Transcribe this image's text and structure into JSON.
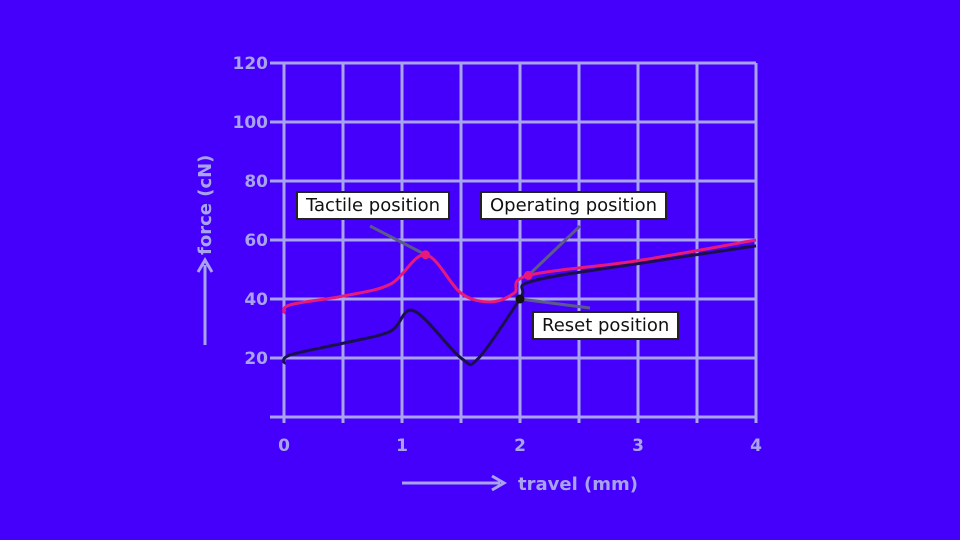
{
  "chart_data": {
    "type": "line",
    "xlabel": "travel (mm)",
    "ylabel": "force (cN)",
    "xlim": [
      0,
      4
    ],
    "ylim": [
      0,
      120
    ],
    "xticks": [
      0,
      1,
      2,
      3,
      4
    ],
    "yticks": [
      20,
      40,
      60,
      80,
      100,
      120
    ],
    "grid": true,
    "series": [
      {
        "color": "#e8197a",
        "x": [
          0,
          0.05,
          0.5,
          0.9,
          1.2,
          1.5,
          1.75,
          1.95,
          2.07,
          3,
          4
        ],
        "y": [
          35,
          38,
          41,
          45,
          55,
          42,
          39,
          42,
          48,
          53,
          60
        ]
      },
      {
        "color": "#1a1050",
        "x": [
          0,
          0.05,
          0.5,
          0.9,
          1.1,
          1.5,
          1.65,
          2,
          2.1,
          3,
          4
        ],
        "y": [
          18,
          21,
          25,
          29,
          36,
          20,
          20,
          40,
          46,
          52,
          58
        ]
      }
    ],
    "annotations": [
      {
        "text": "Tactile position",
        "x": 1.2,
        "y": 55,
        "color": "#e8197a"
      },
      {
        "text": "Operating position",
        "x": 2.07,
        "y": 48,
        "color": "#e8197a"
      },
      {
        "text": "Reset position",
        "x": 2,
        "y": 40,
        "color": "#111111"
      }
    ]
  },
  "colors": {
    "background": "#4400fb",
    "grid": "#a9a3ee"
  }
}
